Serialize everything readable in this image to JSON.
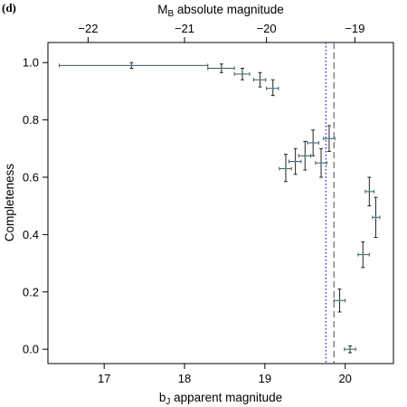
{
  "panel_label": "(d)",
  "chart_data": {
    "type": "scatter",
    "ylabel": "Completeness",
    "xlabel_bottom": {
      "main": "b",
      "sub": "J",
      "rest": " apparent magnitude"
    },
    "xlabel_top": {
      "main": "M",
      "sub": "B",
      "rest": " absolute magnitude"
    },
    "xlim": [
      16.3,
      20.6
    ],
    "ylim": [
      -0.05,
      1.07
    ],
    "xticks_bottom": [
      17,
      18,
      19,
      20
    ],
    "xticks_top": [
      {
        "label": "−22",
        "position": 16.8
      },
      {
        "label": "−21",
        "position": 18.0
      },
      {
        "label": "−20",
        "position": 19.02
      },
      {
        "label": "−19",
        "position": 20.12
      }
    ],
    "yticks": [
      0.0,
      0.2,
      0.4,
      0.6,
      0.8,
      1.0
    ],
    "ytick_labels": [
      "0.0",
      "0.2",
      "0.4",
      "0.6",
      "0.8",
      "1.0"
    ],
    "grid": false,
    "vertical_lines": [
      {
        "x": 19.76,
        "style": "dotted",
        "color": "#3a3ad0"
      },
      {
        "x": 19.86,
        "style": "dashed",
        "color": "#6a6a6a"
      }
    ],
    "series": [
      {
        "points": [
          {
            "x": 17.34,
            "y": 0.99,
            "xlo": 16.44,
            "xhi": 18.29,
            "ylo": 0.98,
            "yhi": 1.0
          },
          {
            "x": 18.46,
            "y": 0.98,
            "xlo": 18.29,
            "xhi": 18.62,
            "ylo": 0.965,
            "yhi": 0.995
          },
          {
            "x": 18.72,
            "y": 0.96,
            "xlo": 18.62,
            "xhi": 18.81,
            "ylo": 0.94,
            "yhi": 0.98
          },
          {
            "x": 18.94,
            "y": 0.94,
            "xlo": 18.86,
            "xhi": 19.01,
            "ylo": 0.915,
            "yhi": 0.965
          },
          {
            "x": 19.1,
            "y": 0.91,
            "xlo": 19.02,
            "xhi": 19.17,
            "ylo": 0.885,
            "yhi": 0.94
          },
          {
            "x": 19.26,
            "y": 0.63,
            "xlo": 19.18,
            "xhi": 19.33,
            "ylo": 0.585,
            "yhi": 0.68
          },
          {
            "x": 19.38,
            "y": 0.655,
            "xlo": 19.3,
            "xhi": 19.45,
            "ylo": 0.61,
            "yhi": 0.7
          },
          {
            "x": 19.5,
            "y": 0.675,
            "xlo": 19.42,
            "xhi": 19.57,
            "ylo": 0.625,
            "yhi": 0.725
          },
          {
            "x": 19.6,
            "y": 0.72,
            "xlo": 19.53,
            "xhi": 19.67,
            "ylo": 0.675,
            "yhi": 0.765
          },
          {
            "x": 19.7,
            "y": 0.65,
            "xlo": 19.63,
            "xhi": 19.77,
            "ylo": 0.6,
            "yhi": 0.7
          },
          {
            "x": 19.8,
            "y": 0.735,
            "xlo": 19.73,
            "xhi": 19.87,
            "ylo": 0.69,
            "yhi": 0.78
          },
          {
            "x": 19.93,
            "y": 0.17,
            "xlo": 19.86,
            "xhi": 20.0,
            "ylo": 0.13,
            "yhi": 0.21
          },
          {
            "x": 20.06,
            "y": 0.0,
            "xlo": 19.99,
            "xhi": 20.13,
            "ylo": -0.012,
            "yhi": 0.012
          },
          {
            "x": 20.22,
            "y": 0.33,
            "xlo": 20.16,
            "xhi": 20.3,
            "ylo": 0.285,
            "yhi": 0.375
          },
          {
            "x": 20.3,
            "y": 0.55,
            "xlo": 20.25,
            "xhi": 20.36,
            "ylo": 0.5,
            "yhi": 0.6
          },
          {
            "x": 20.38,
            "y": 0.46,
            "xlo": 20.34,
            "xhi": 20.43,
            "ylo": 0.39,
            "yhi": 0.53
          }
        ],
        "color": "#3c5a5a"
      }
    ]
  }
}
